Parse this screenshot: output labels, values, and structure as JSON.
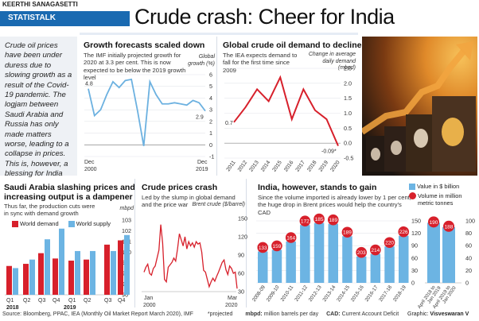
{
  "header": {
    "byline": "KEERTHI SANAGASETTI",
    "section_tag": "STATISTALK",
    "headline": "Crude crash: Cheer for India"
  },
  "intro_text": "Crude oil prices have been under duress due to slowing growth as a result of the Covid-19 pandemic. The logjam between Saudi Arabia and Russia has only made matters worse, leading to a collapse in prices. This is, however, a blessing for India",
  "colors": {
    "brand_blue": "#1a6ab1",
    "line_blue": "#6cb1e0",
    "red": "#d7202b",
    "bar_blue": "#6cb4e3",
    "panel_bg": "#eef2f8"
  },
  "image": {
    "alt": "oil-barrels-rising-arrow-photo"
  },
  "footer": {
    "source": "Source: Bloomberg, PPAC, IEA (Monthly Oil Market Report March 2020), IMF",
    "projected_note": "*projected",
    "mbpd_key": "mbpd:",
    "mbpd_def": "million barrels per day",
    "cad_key": "CAD:",
    "cad_def": "Current Account Deficit",
    "graphic_key": "Graphic:",
    "graphic_by": "Visveswaran V"
  },
  "chart_data": [
    {
      "id": "growth",
      "type": "line",
      "title": "Growth forecasts scaled down",
      "subtitle": "The IMF initially projected growth for 2020 at 3.3 per cent. This is now expected to be below the 2019 growth level",
      "ylabel": "Global growth (%)",
      "ylim": [
        -1,
        6
      ],
      "yticks": [
        "6",
        "5",
        "4",
        "3",
        "2",
        "1",
        "0",
        "-1"
      ],
      "x_start_label": [
        "Dec",
        "2000"
      ],
      "x_end_label": [
        "Dec",
        "2019"
      ],
      "values": [
        4.8,
        2.5,
        3.0,
        4.3,
        5.4,
        4.9,
        5.5,
        5.6,
        2.9,
        -0.1,
        5.4,
        4.3,
        3.5,
        3.5,
        3.6,
        3.5,
        3.4,
        3.8,
        3.6,
        2.9
      ],
      "annotations": {
        "first": "4.8",
        "last": "2.9"
      },
      "color": "#6cb1e0"
    },
    {
      "id": "demand",
      "type": "line",
      "title": "Global crude oil demand to decline",
      "subtitle": "The IEA expects demand to fall for the first time since 2009",
      "ylabel": "Change in average daily demand (mbpd)",
      "ylim": [
        -0.5,
        2.5
      ],
      "yticks": [
        "2.5",
        "2.0",
        "1.5",
        "1.0",
        "0.5",
        "0.0",
        "-0.5"
      ],
      "categories": [
        "2011",
        "2012",
        "2013",
        "2014",
        "2015",
        "2016",
        "2017",
        "2018",
        "2019",
        "2020"
      ],
      "values": [
        0.7,
        1.2,
        1.8,
        1.4,
        2.2,
        0.8,
        1.8,
        1.1,
        0.8,
        -0.09
      ],
      "annotations": {
        "first": "0.7",
        "last": "-0.09*"
      },
      "color": "#d7202b"
    },
    {
      "id": "saudi",
      "type": "bar",
      "title": "Saudi Arabia slashing prices and increasing output is a dampener",
      "title_line1": "Saudi Arabia slashing prices and",
      "title_line2": "increasing output is a dampener",
      "subtitle": "Thus far, the production cuts were in sync with demand growth",
      "ylabel": "mbpd",
      "ylim": [
        96,
        103
      ],
      "yticks": [
        "103",
        "102",
        "101",
        "100",
        "99",
        "98",
        "97",
        "96"
      ],
      "categories": [
        "Q1",
        "Q2",
        "Q3",
        "Q4",
        "Q1",
        "Q2",
        "Q3",
        "Q4"
      ],
      "year_labels": [
        "2018",
        "2019"
      ],
      "series": [
        {
          "name": "World demand",
          "color": "#d7202b",
          "values": [
            98.7,
            98.9,
            99.9,
            99.4,
            99.2,
            99.3,
            100.7,
            101.1
          ]
        },
        {
          "name": "World supply",
          "color": "#6cb4e3",
          "values": [
            98.5,
            99.3,
            101.2,
            102.2,
            100.1,
            100.1,
            100.1,
            101.6
          ]
        }
      ]
    },
    {
      "id": "brent",
      "type": "line",
      "title": "Crude prices crash",
      "subtitle": "Led by the slump in global demand and the price war",
      "ylabel": "Brent crude ($/barrel)",
      "ylim": [
        30,
        150
      ],
      "yticks": [
        "150",
        "120",
        "90",
        "60",
        "30"
      ],
      "x_start_label": [
        "Jan",
        "2000"
      ],
      "x_end_label": [
        "Mar",
        "2020"
      ],
      "values": [
        62,
        70,
        75,
        60,
        57,
        68,
        72,
        85,
        98,
        140,
        110,
        50,
        46,
        70,
        74,
        78,
        85,
        80,
        100,
        125,
        115,
        105,
        120,
        100,
        112,
        105,
        110,
        103,
        112,
        108,
        110,
        95,
        65,
        62,
        50,
        38,
        46,
        52,
        47,
        55,
        62,
        70,
        78,
        82,
        66,
        58,
        72,
        68,
        60,
        62,
        35
      ],
      "color": "#d7202b"
    },
    {
      "id": "india",
      "type": "bar",
      "title": "India, however, stands to gain",
      "subtitle": "Since the volume imported is already lower by 1 per cent, the huge drop in Brent prices would help the country's CAD",
      "legend": [
        {
          "name": "Value in $ billion",
          "color": "#6cb4e3",
          "shape": "square"
        },
        {
          "name": "Volume in million metric tonnes",
          "color": "#d7202b",
          "shape": "circle"
        }
      ],
      "annual": {
        "categories": [
          "2008-09",
          "2009-10",
          "2010-11",
          "2011-12",
          "2012-13",
          "2013-14",
          "2014-15",
          "2015-16",
          "2016-17",
          "2017-18",
          "2018-19"
        ],
        "value_usd_bn": [
          76,
          80,
          100,
          140,
          145,
          143,
          113,
          64,
          70,
          88,
          114
        ],
        "volume_mmt": [
          133,
          159,
          164,
          172,
          185,
          189,
          189,
          203,
          214,
          220,
          226
        ],
        "ylim": [
          0,
          150
        ],
        "yticks": [
          "150",
          "120",
          "90",
          "60",
          "30",
          "0"
        ]
      },
      "ytd": {
        "categories": [
          "April 2018 to Jan 2019",
          "April 2019 to Jan 2020"
        ],
        "value_usd_bn": [
          97,
          90
        ],
        "volume_mmt": [
          190,
          188
        ],
        "ylim": [
          0,
          100
        ],
        "yticks": [
          "100",
          "80",
          "60",
          "40",
          "20",
          "0"
        ]
      }
    }
  ]
}
